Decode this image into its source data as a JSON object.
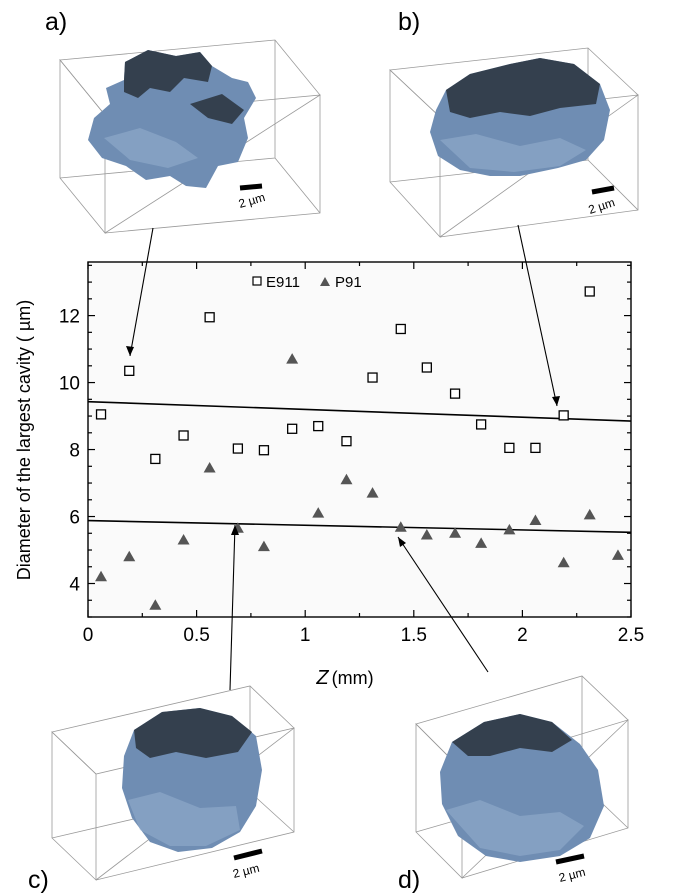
{
  "panels": {
    "a": "a)",
    "b": "b)",
    "c": "c)",
    "d": "d)"
  },
  "scale_bar_label": "2 µm",
  "chart_data": {
    "type": "scatter",
    "ylabel": "Diameter of the largest cavity ( µm)",
    "xlabel_var": "Z",
    "xlabel_unit": "(mm)",
    "xlim": [
      0,
      2.5
    ],
    "ylim": [
      3,
      13.6
    ],
    "xticks": [
      0,
      0.5,
      1,
      1.5,
      2,
      2.5
    ],
    "xtick_labels": [
      "0",
      "0.5",
      "1",
      "1.5",
      "2",
      "2.5"
    ],
    "yticks": [
      4,
      6,
      8,
      10,
      12
    ],
    "ytick_labels": [
      "4",
      "6",
      "8",
      "10",
      "12"
    ],
    "legend_position": "top-center",
    "series": [
      {
        "name": "E911",
        "marker": "open-square",
        "color": "#000000",
        "x": [
          0.06,
          0.19,
          0.31,
          0.44,
          0.56,
          0.69,
          0.81,
          0.94,
          1.06,
          1.19,
          1.31,
          1.44,
          1.56,
          1.69,
          1.81,
          1.94,
          2.06,
          2.19,
          2.31
        ],
        "y": [
          9.05,
          10.35,
          7.72,
          8.42,
          11.95,
          8.03,
          7.98,
          8.62,
          8.7,
          8.25,
          10.15,
          11.6,
          10.45,
          9.67,
          8.75,
          8.05,
          8.05,
          9.02,
          12.72
        ]
      },
      {
        "name": "P91",
        "marker": "filled-triangle",
        "color": "#555555",
        "x": [
          0.06,
          0.19,
          0.31,
          0.44,
          0.56,
          0.69,
          0.81,
          0.94,
          1.06,
          1.19,
          1.31,
          1.44,
          1.56,
          1.69,
          1.81,
          1.94,
          2.06,
          2.19,
          2.31,
          2.44
        ],
        "y": [
          4.2,
          4.8,
          3.35,
          5.3,
          7.45,
          5.65,
          5.1,
          10.7,
          6.1,
          7.1,
          6.7,
          5.68,
          5.45,
          5.5,
          5.2,
          5.6,
          5.88,
          4.62,
          6.05,
          4.84
        ]
      }
    ],
    "trend_lines": [
      {
        "x": [
          0,
          2.5
        ],
        "y": [
          9.43,
          8.85
        ]
      },
      {
        "x": [
          0,
          2.5
        ],
        "y": [
          5.88,
          5.53
        ]
      }
    ]
  }
}
